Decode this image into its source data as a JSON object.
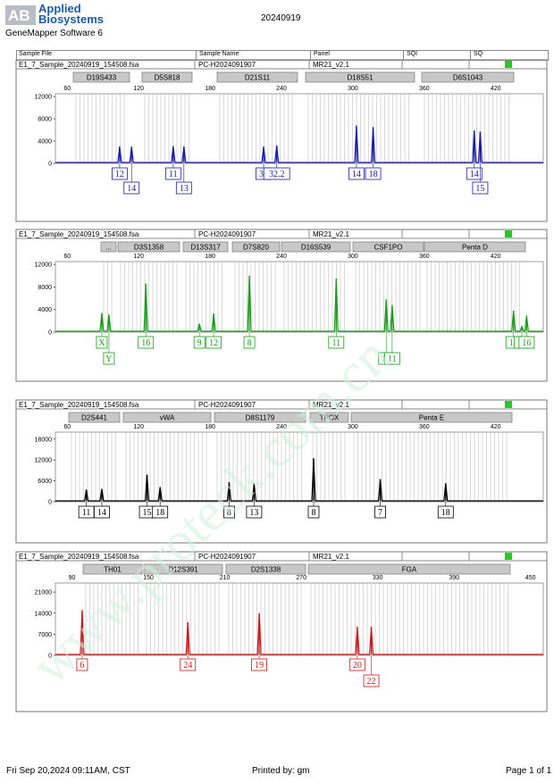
{
  "header": {
    "logo_mark": "AB",
    "brand_line1": "Applied",
    "brand_line2": "Biosystems",
    "software": "GeneMapper Software 6",
    "date": "20240919",
    "columns": [
      "Sample File",
      "Sample Name",
      "Panel",
      "SQI",
      "SQ"
    ]
  },
  "footer": {
    "timestamp": "Fri Sep 20,2024 09:11AM, CST",
    "printed_by": "Printed by: gm",
    "page": "Page 1 of 1"
  },
  "watermark": {
    "text": "www.proteck.com.cn",
    "color": "#cfeee0"
  },
  "colors": {
    "sq_ok": "#22cc22",
    "blue": "#1a1aa8",
    "green": "#1c9a1c",
    "black": "#000000",
    "red": "#c81818"
  },
  "panels": [
    {
      "sample_file": "E1_7_Sample_20240919_154508.fsa",
      "sample_name": "PC-H2024091907",
      "panel": "MR21_v2.1",
      "status": "green",
      "markers": [
        "D19S433",
        "D5S818",
        "D21S11",
        "D18S51",
        "D6S1043"
      ],
      "chart_data": {
        "type": "line",
        "dye": "blue",
        "x_range": [
          50,
          460
        ],
        "x_ticks": [
          60,
          120,
          180,
          240,
          300,
          360,
          420
        ],
        "y_range": [
          0,
          12500
        ],
        "y_ticks": [
          0,
          4000,
          8000,
          12000
        ],
        "peaks": [
          {
            "x": 104,
            "height": 3000,
            "allele": "12"
          },
          {
            "x": 114,
            "height": 3000,
            "allele": "14"
          },
          {
            "x": 149,
            "height": 3100,
            "allele": "11"
          },
          {
            "x": 158,
            "height": 3000,
            "allele": "13"
          },
          {
            "x": 225,
            "height": 3000,
            "allele": "30"
          },
          {
            "x": 236,
            "height": 3200,
            "allele": "32.2"
          },
          {
            "x": 303,
            "height": 6800,
            "allele": "14"
          },
          {
            "x": 317,
            "height": 6500,
            "allele": "18"
          },
          {
            "x": 402,
            "height": 5900,
            "allele": "14"
          },
          {
            "x": 407,
            "height": 5700,
            "allele": "15"
          }
        ]
      }
    },
    {
      "sample_file": "E1_7_Sample_20240919_154508.fsa",
      "sample_name": "PC-H2024091907",
      "panel": "MR21_v2.1",
      "status": "green",
      "markers": [
        "...",
        "D3S1358",
        "D13S317",
        "D7S820",
        "D16S539",
        "CSF1PO",
        "Penta D"
      ],
      "chart_data": {
        "type": "line",
        "dye": "green",
        "x_range": [
          50,
          460
        ],
        "x_ticks": [
          60,
          120,
          180,
          240,
          300,
          360,
          420
        ],
        "y_range": [
          0,
          12500
        ],
        "y_ticks": [
          0,
          4000,
          8000,
          12000
        ],
        "peaks": [
          {
            "x": 89,
            "height": 3400,
            "allele": "X"
          },
          {
            "x": 95,
            "height": 3100,
            "allele": "Y"
          },
          {
            "x": 126,
            "height": 8600,
            "allele": "16"
          },
          {
            "x": 171,
            "height": 1500,
            "allele": "9"
          },
          {
            "x": 183,
            "height": 3300,
            "allele": "12"
          },
          {
            "x": 213,
            "height": 10000,
            "allele": "8"
          },
          {
            "x": 286,
            "height": 9500,
            "allele": "11"
          },
          {
            "x": 328,
            "height": 5800,
            "allele": "10"
          },
          {
            "x": 333,
            "height": 4800,
            "allele": "11"
          },
          {
            "x": 435,
            "height": 3800,
            "allele": "13"
          },
          {
            "x": 442,
            "height": 1000,
            "allele": "15"
          },
          {
            "x": 446,
            "height": 2900,
            "allele": "16"
          }
        ]
      }
    },
    {
      "sample_file": "E1_7_Sample_20240919_154508.fsa",
      "sample_name": "PC-H2024091907",
      "panel": "MR21_v2.1",
      "status": "green",
      "markers": [
        "D2S441",
        "vWA",
        "D8S1179",
        "TPOX",
        "Penta E"
      ],
      "chart_data": {
        "type": "line",
        "dye": "black",
        "x_range": [
          50,
          460
        ],
        "x_ticks": [
          60,
          120,
          180,
          240,
          300,
          360,
          420
        ],
        "y_range": [
          0,
          20000
        ],
        "y_ticks": [
          0,
          6000,
          12000,
          18000
        ],
        "peaks": [
          {
            "x": 76,
            "height": 3500,
            "allele": "11"
          },
          {
            "x": 89,
            "height": 3700,
            "allele": "14"
          },
          {
            "x": 127,
            "height": 7800,
            "allele": "15"
          },
          {
            "x": 138,
            "height": 4200,
            "allele": "18"
          },
          {
            "x": 196,
            "height": 5600,
            "allele": "8"
          },
          {
            "x": 217,
            "height": 5300,
            "allele": "13"
          },
          {
            "x": 267,
            "height": 12500,
            "allele": "8"
          },
          {
            "x": 323,
            "height": 6500,
            "allele": "7"
          },
          {
            "x": 378,
            "height": 5300,
            "allele": "18"
          }
        ]
      }
    },
    {
      "sample_file": "E1_7_Sample_20240919_154508.fsa",
      "sample_name": "PC-H2024091907",
      "panel": "MR21_v2.1",
      "status": "green",
      "markers": [
        "TH01",
        "D12S391",
        "D2S1338",
        "FGA"
      ],
      "chart_data": {
        "type": "line",
        "dye": "red",
        "x_range": [
          77,
          460
        ],
        "x_ticks": [
          90,
          150,
          210,
          270,
          330,
          390,
          450
        ],
        "y_range": [
          0,
          24000
        ],
        "y_ticks": [
          0,
          7000,
          14000,
          21000
        ],
        "peaks": [
          {
            "x": 98,
            "height": 15000,
            "allele": "6"
          },
          {
            "x": 181,
            "height": 11000,
            "allele": "24"
          },
          {
            "x": 237,
            "height": 14000,
            "allele": "19"
          },
          {
            "x": 314,
            "height": 9500,
            "allele": "20"
          },
          {
            "x": 325,
            "height": 9500,
            "allele": "22"
          }
        ]
      }
    }
  ]
}
